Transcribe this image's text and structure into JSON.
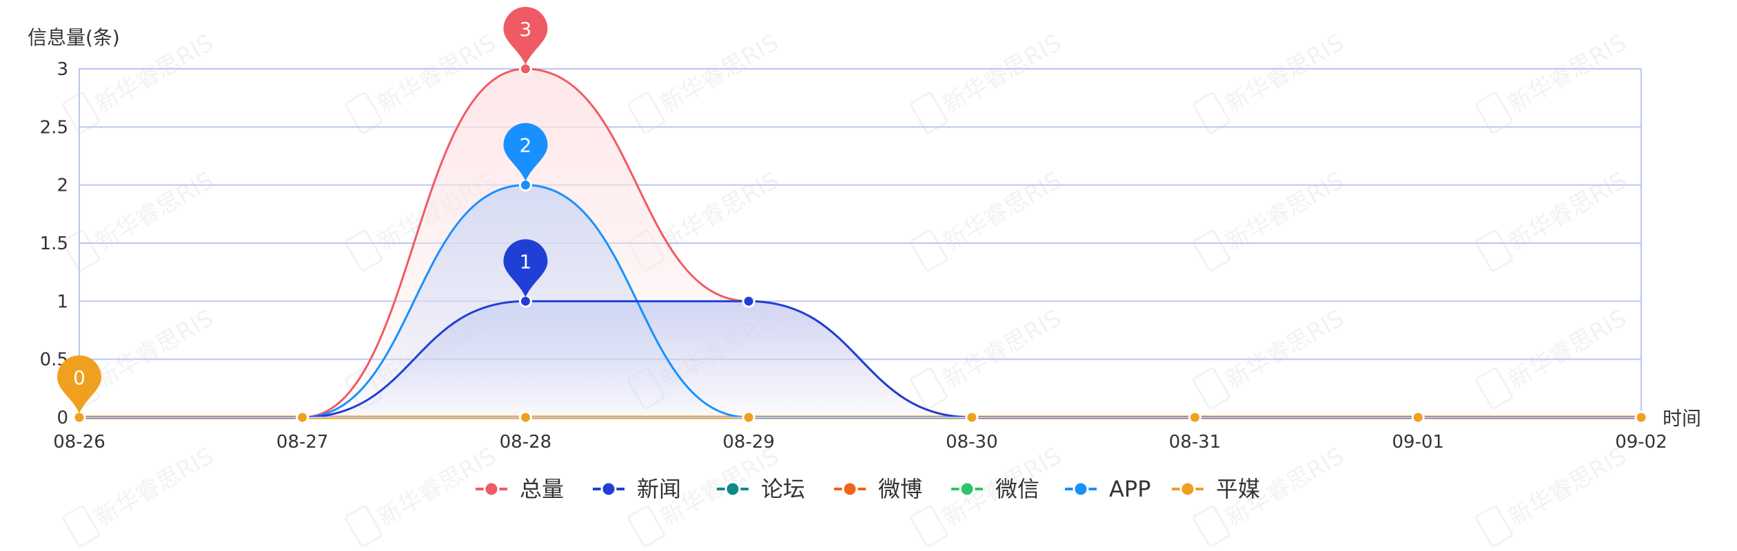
{
  "chart_data": {
    "type": "line",
    "smooth": true,
    "categories": [
      "08-26",
      "08-27",
      "08-28",
      "08-29",
      "08-30",
      "08-31",
      "09-01",
      "09-02"
    ],
    "ylabel": "信息量(条)",
    "xlabel": "时间",
    "ylim": [
      0,
      3
    ],
    "yticks": [
      "0",
      "0.5",
      "1",
      "1.5",
      "2",
      "2.5",
      "3"
    ],
    "grid": true,
    "legend_position": "bottom-center",
    "watermark_text": "新华睿思RIS",
    "series": [
      {
        "name": "总量",
        "color": "#f05a64",
        "values": [
          0,
          0,
          3,
          1,
          0,
          0,
          0,
          0
        ],
        "area": true,
        "area_color": "#fde3e5",
        "max_marker": "3"
      },
      {
        "name": "新闻",
        "color": "#1f3fd6",
        "values": [
          0,
          0,
          1,
          1,
          0,
          0,
          0,
          0
        ],
        "area": true,
        "area_color": "#c9d0f2",
        "max_marker": "1"
      },
      {
        "name": "论坛",
        "color": "#0e8a8a",
        "values": [
          0,
          0,
          0,
          0,
          0,
          0,
          0,
          0
        ]
      },
      {
        "name": "微博",
        "color": "#f06414",
        "values": [
          0,
          0,
          0,
          0,
          0,
          0,
          0,
          0
        ]
      },
      {
        "name": "微信",
        "color": "#2ec46e",
        "values": [
          0,
          0,
          0,
          0,
          0,
          0,
          0,
          0
        ]
      },
      {
        "name": "APP",
        "color": "#1890ff",
        "values": [
          0,
          0,
          2,
          0,
          0,
          0,
          0,
          0
        ],
        "area": true,
        "area_color": "#cfd9f5",
        "max_marker": "2"
      },
      {
        "name": "平媒",
        "color": "#f0a01e",
        "values": [
          0,
          0,
          0,
          0,
          0,
          0,
          0,
          0
        ],
        "max_marker": "0"
      }
    ]
  }
}
